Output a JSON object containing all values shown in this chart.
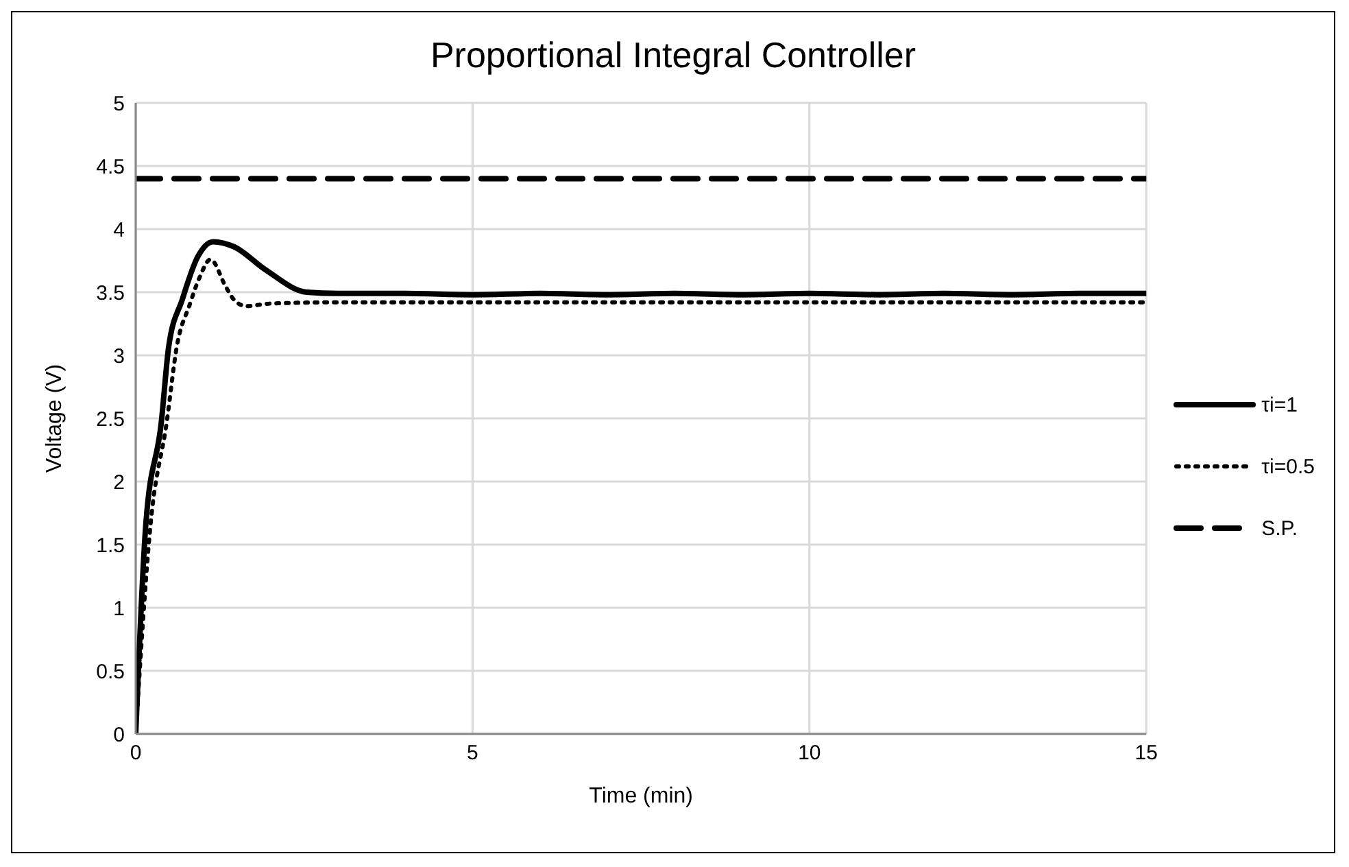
{
  "chart_data": {
    "type": "line",
    "title": "Proportional Integral Controller",
    "xlabel": "Time (min)",
    "ylabel": "Voltage (V)",
    "xlim": [
      0,
      15
    ],
    "xticks": [
      0,
      5,
      10,
      15
    ],
    "ylim": [
      0,
      5
    ],
    "yticks": [
      0,
      0.5,
      1,
      1.5,
      2,
      2.5,
      3,
      3.5,
      4,
      4.5,
      5
    ],
    "grid": true,
    "legend": "right",
    "marker": "none",
    "series": [
      {
        "name": "τi=1",
        "color": "#000000",
        "line_style": "solid",
        "x": [
          0,
          0.15,
          0.38,
          0.49,
          0.69,
          0.92,
          1.15,
          1.46,
          1.92,
          2.54,
          3,
          4,
          5,
          6,
          7,
          8,
          9,
          10,
          11,
          12,
          13,
          14,
          15
        ],
        "values": [
          0,
          1.66,
          2.47,
          3.07,
          3.44,
          3.78,
          3.9,
          3.86,
          3.68,
          3.5,
          3.49,
          3.49,
          3.48,
          3.49,
          3.48,
          3.49,
          3.48,
          3.49,
          3.48,
          3.49,
          3.48,
          3.49,
          3.49
        ]
      },
      {
        "name": "τi=0.5",
        "color": "#000000",
        "line_style": "dotted",
        "x": [
          0,
          0.22,
          0.46,
          0.61,
          0.8,
          0.95,
          1.11,
          1.34,
          1.46,
          1.64,
          2,
          3,
          5,
          10,
          15
        ],
        "values": [
          0,
          1.66,
          2.47,
          3.07,
          3.4,
          3.62,
          3.76,
          3.54,
          3.44,
          3.39,
          3.41,
          3.42,
          3.42,
          3.42,
          3.42
        ]
      },
      {
        "name": "S.P.",
        "color": "#000000",
        "line_style": "dashed",
        "x": [
          0,
          15
        ],
        "values": [
          4.4,
          4.4
        ]
      }
    ]
  }
}
